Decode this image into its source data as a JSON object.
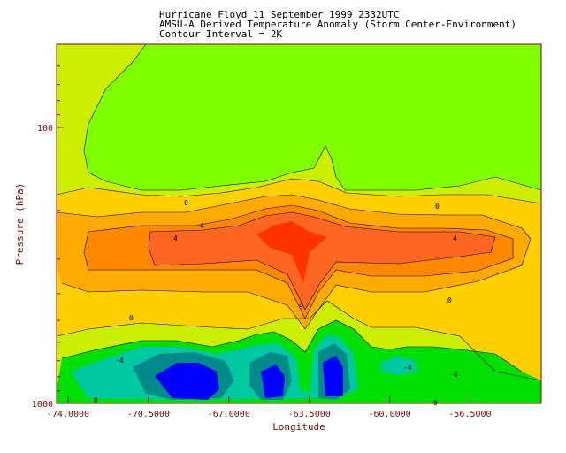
{
  "chart_data": {
    "type": "contour",
    "title_lines": [
      "Hurricane Floyd 11 September 1999 2332UTC",
      "AMSU-A Derived Temperature Anomaly (Storm Center-Environment)",
      "Contour Interval = 2K"
    ],
    "xlabel": "Longitude",
    "ylabel": "Pressure (hPa)",
    "x_ticks": [
      "-74.0000",
      "-70.5000",
      "-67.0000",
      "-63.5000",
      "-60.0000",
      "-56.5000"
    ],
    "x_tick_values": [
      -74.0,
      -70.5,
      -67.0,
      -63.5,
      -60.0,
      -56.5
    ],
    "xlim": [
      -74.5,
      -53.4
    ],
    "y_scale": "log",
    "y_ticks": [
      "100",
      "1000"
    ],
    "y_tick_values": [
      100,
      1000
    ],
    "ylim": [
      1000,
      50
    ],
    "contour_interval": 2,
    "contour_labels": [
      "0",
      "0",
      "0",
      "0",
      "0",
      "0",
      "4",
      "4",
      "4",
      "4",
      "-4",
      "-4",
      "-4"
    ],
    "colors": {
      "level_m6": "#0000ff",
      "level_m4": "#008a8a",
      "level_m2": "#00c8a0",
      "level_m1": "#00e000",
      "level_0": "#80ff00",
      "level_1": "#ccee00",
      "level_2": "#ffd000",
      "level_3": "#ffaa00",
      "level_4": "#ff8800",
      "level_5": "#ff6622",
      "level_6": "#ff3300",
      "axis_text": "#7a0a0a"
    }
  }
}
